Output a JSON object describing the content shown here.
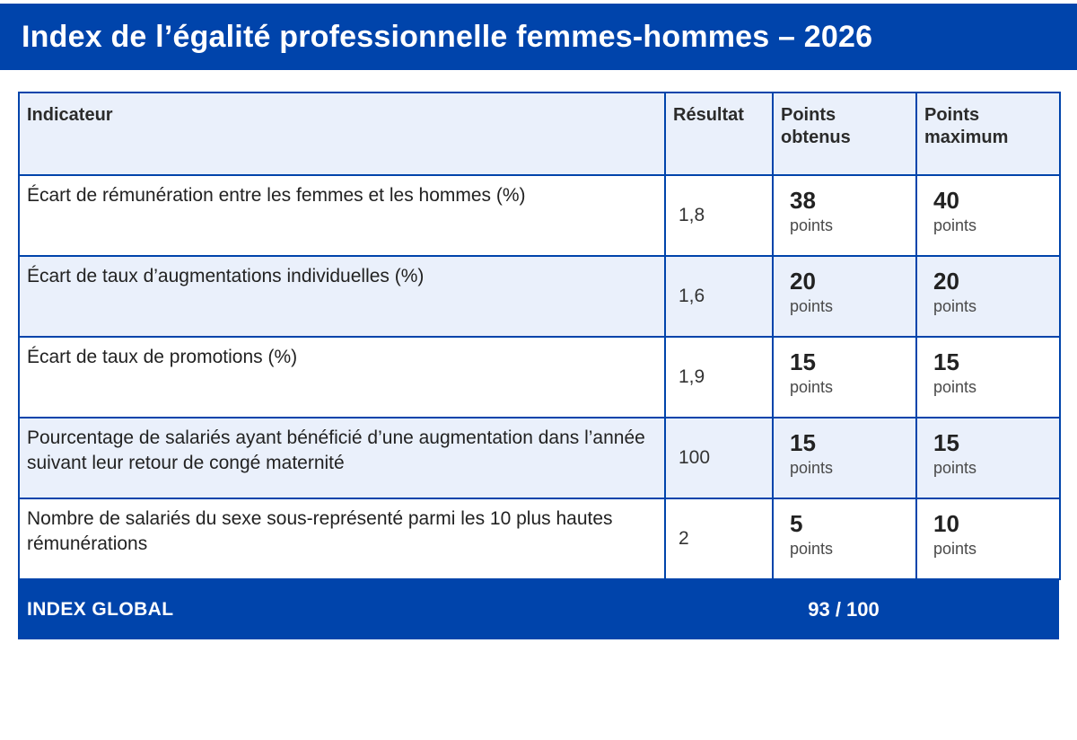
{
  "header": {
    "title": "Index de l’égalité professionnelle femmes-hommes – 2026"
  },
  "table": {
    "columns": [
      "Indicateur",
      "Résultat",
      "Points obtenus",
      "Points maximum"
    ],
    "points_unit": "points",
    "rows": [
      {
        "indicator": "Écart de rémunération entre les femmes et les hommes (%)",
        "result": "1,8",
        "points_obtained": "38",
        "points_max": "40"
      },
      {
        "indicator": "Écart de taux d’augmentations individuelles (%)",
        "result": "1,6",
        "points_obtained": "20",
        "points_max": "20"
      },
      {
        "indicator": "Écart de taux de promotions (%)",
        "result": "1,9",
        "points_obtained": "15",
        "points_max": "15"
      },
      {
        "indicator": "Pourcentage de salariés ayant bénéficié d’une augmentation dans l’année suivant leur retour de congé maternité",
        "result": "100",
        "points_obtained": "15",
        "points_max": "15"
      },
      {
        "indicator": "Nombre de salariés du sexe sous-représenté parmi les 10 plus hautes rémunérations",
        "result": "2",
        "points_obtained": "5",
        "points_max": "10"
      }
    ]
  },
  "footer": {
    "label": "INDEX GLOBAL",
    "score": "93 / 100"
  },
  "colors": {
    "primary_blue": "#0044AB",
    "light_blue": "#EAF0FB"
  }
}
